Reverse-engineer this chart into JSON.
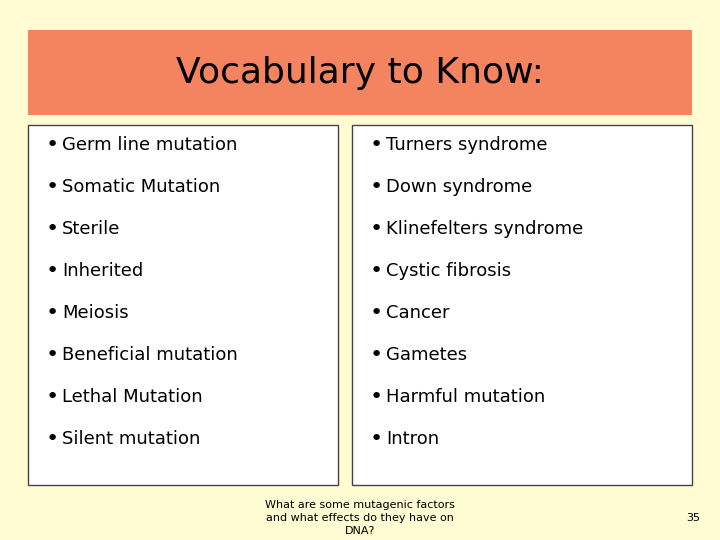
{
  "title": "Vocabulary to Know:",
  "title_bg_color": "#F4845F",
  "slide_bg_color": "#FFFCD4",
  "box_bg_color": "#FFFFFF",
  "box_border_color": "#444444",
  "left_items": [
    "Germ line mutation",
    "Somatic Mutation",
    "Sterile",
    "Inherited",
    "Meiosis",
    "Beneficial mutation",
    "Lethal Mutation",
    "Silent mutation"
  ],
  "right_items": [
    "Turners syndrome",
    "Down syndrome",
    "Klinefelters syndrome",
    "Cystic fibrosis",
    "Cancer",
    "Gametes",
    "Harmful mutation",
    "Intron"
  ],
  "footer_line1": "What are some mutagenic factors",
  "footer_line2": "and what effects do they have on",
  "footer_line3": "DNA?",
  "footer_page": "35",
  "title_fontsize": 26,
  "item_fontsize": 13,
  "footer_fontsize": 8
}
